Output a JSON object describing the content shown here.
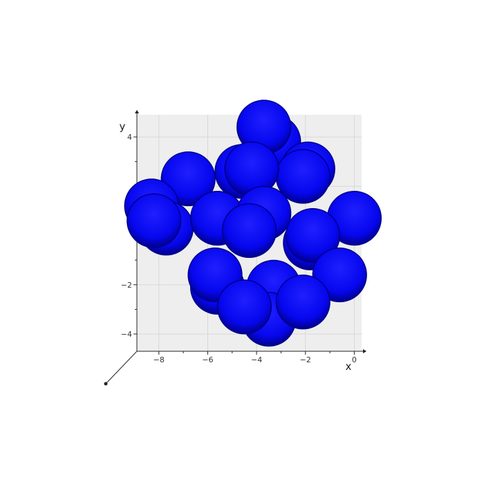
{
  "chart_data": {
    "type": "scatter",
    "title": "",
    "xlabel": "x",
    "ylabel": "y",
    "xlim": [
      -8.9,
      0.3
    ],
    "ylim": [
      -4.7,
      4.9
    ],
    "x_ticks": [
      -8,
      -6,
      -4,
      -2,
      0
    ],
    "y_ticks": [
      -4,
      -2,
      4
    ],
    "x_tick_labels": [
      "−8",
      "−6",
      "−4",
      "−2",
      "0"
    ],
    "y_tick_labels": [
      "−4",
      "−2",
      "4"
    ],
    "grid": true,
    "legend": "none",
    "marker": "sphere",
    "sphere_radius": 1.1,
    "colors": {
      "sphere": "#0a0aff",
      "sphere_shade": "#00008a",
      "panel": "#eeeeee",
      "grid": "#d8d8d8",
      "axis": "#222222"
    },
    "series": [
      {
        "points": [
          {
            "x": -3.3,
            "y": 3.8
          },
          {
            "x": -3.7,
            "y": 4.4
          },
          {
            "x": -1.9,
            "y": 2.7
          },
          {
            "x": -2.1,
            "y": 2.4
          },
          {
            "x": -4.6,
            "y": 2.6
          },
          {
            "x": -4.2,
            "y": 2.7
          },
          {
            "x": -6.8,
            "y": 2.3
          },
          {
            "x": -8.3,
            "y": 1.2
          },
          {
            "x": -7.7,
            "y": 0.3
          },
          {
            "x": -8.2,
            "y": 0.6
          },
          {
            "x": -5.6,
            "y": 0.7
          },
          {
            "x": -3.7,
            "y": 0.9
          },
          {
            "x": -4.3,
            "y": 0.2
          },
          {
            "x": 0.0,
            "y": 0.7
          },
          {
            "x": -1.8,
            "y": -0.3
          },
          {
            "x": -1.7,
            "y": 0.0
          },
          {
            "x": -0.6,
            "y": -1.6
          },
          {
            "x": -5.6,
            "y": -2.1
          },
          {
            "x": -5.7,
            "y": -1.6
          },
          {
            "x": -3.3,
            "y": -2.1
          },
          {
            "x": -3.5,
            "y": -3.4
          },
          {
            "x": -4.5,
            "y": -2.9
          },
          {
            "x": -2.1,
            "y": -2.7
          }
        ]
      }
    ]
  }
}
